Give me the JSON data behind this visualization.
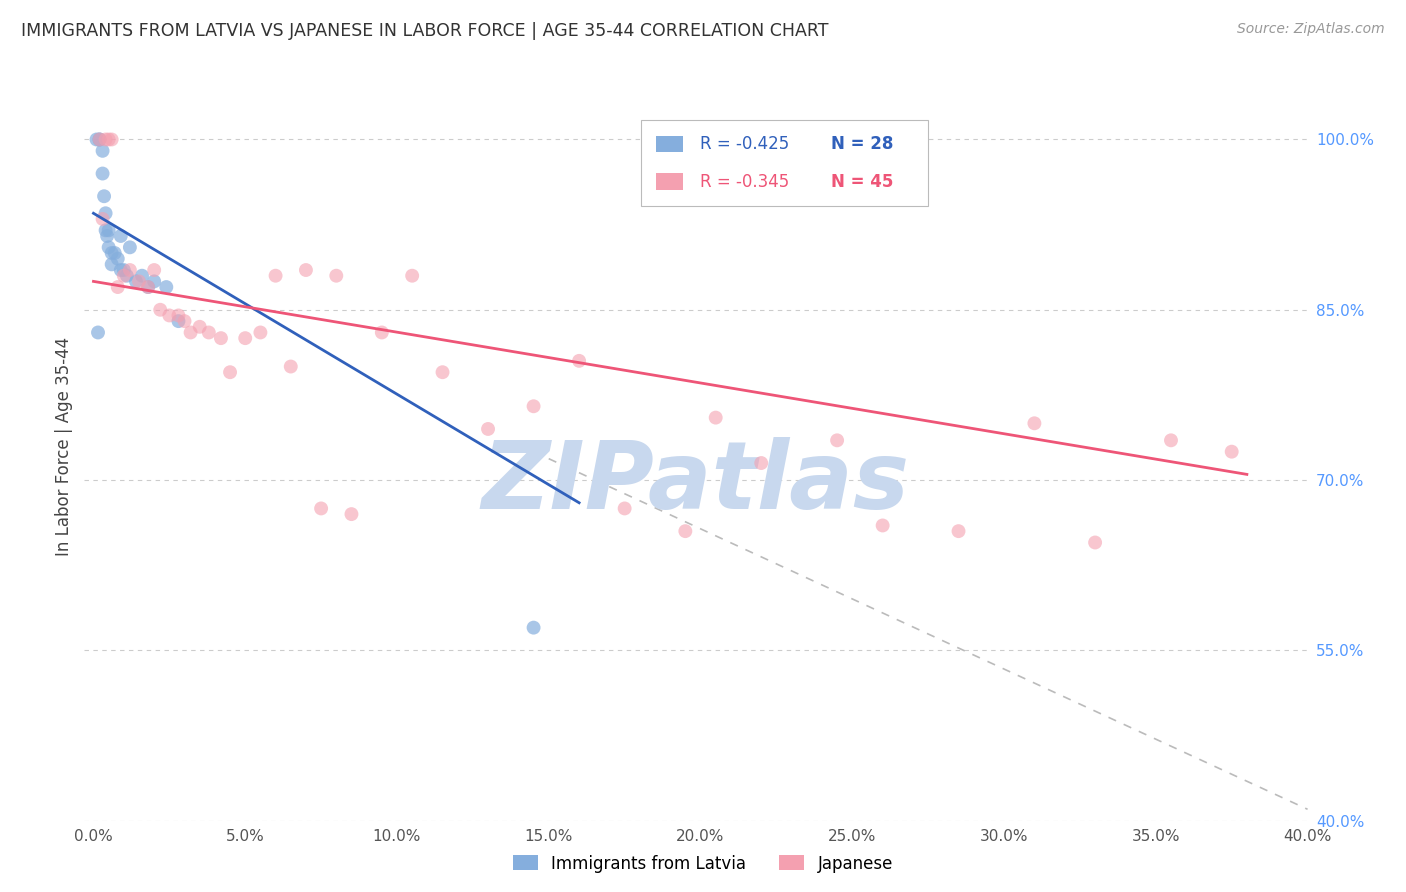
{
  "title": "IMMIGRANTS FROM LATVIA VS JAPANESE IN LABOR FORCE | AGE 35-44 CORRELATION CHART",
  "source": "Source: ZipAtlas.com",
  "ylabel": "In Labor Force | Age 35-44",
  "xlabel_vals": [
    0.0,
    5.0,
    10.0,
    15.0,
    20.0,
    25.0,
    30.0,
    35.0,
    40.0
  ],
  "ylabel_vals": [
    40.0,
    55.0,
    70.0,
    85.0,
    100.0
  ],
  "xlim": [
    -0.3,
    40.0
  ],
  "ylim": [
    40.0,
    106.0
  ],
  "blue_scatter_x": [
    0.1,
    0.2,
    0.2,
    0.3,
    0.3,
    0.35,
    0.4,
    0.4,
    0.45,
    0.5,
    0.5,
    0.6,
    0.6,
    0.7,
    0.8,
    0.9,
    0.9,
    1.0,
    1.1,
    1.2,
    1.4,
    1.6,
    1.8,
    2.0,
    2.4,
    2.8,
    14.5,
    0.15
  ],
  "blue_scatter_y": [
    100.0,
    100.0,
    100.0,
    99.0,
    97.0,
    95.0,
    93.5,
    92.0,
    91.5,
    92.0,
    90.5,
    90.0,
    89.0,
    90.0,
    89.5,
    88.5,
    91.5,
    88.5,
    88.0,
    90.5,
    87.5,
    88.0,
    87.0,
    87.5,
    87.0,
    84.0,
    57.0,
    83.0
  ],
  "pink_scatter_x": [
    0.2,
    0.4,
    0.5,
    0.6,
    0.8,
    1.0,
    1.2,
    1.5,
    1.8,
    2.0,
    2.2,
    2.5,
    2.8,
    3.0,
    3.2,
    3.5,
    3.8,
    4.2,
    4.5,
    5.0,
    5.5,
    6.0,
    6.5,
    7.0,
    7.5,
    8.0,
    8.5,
    9.5,
    10.5,
    11.5,
    13.0,
    14.5,
    16.0,
    17.5,
    19.5,
    20.5,
    22.0,
    24.5,
    26.0,
    28.5,
    31.0,
    33.0,
    35.5,
    37.5,
    0.3
  ],
  "pink_scatter_y": [
    100.0,
    100.0,
    100.0,
    100.0,
    87.0,
    88.0,
    88.5,
    87.5,
    87.0,
    88.5,
    85.0,
    84.5,
    84.5,
    84.0,
    83.0,
    83.5,
    83.0,
    82.5,
    79.5,
    82.5,
    83.0,
    88.0,
    80.0,
    88.5,
    67.5,
    88.0,
    67.0,
    83.0,
    88.0,
    79.5,
    74.5,
    76.5,
    80.5,
    67.5,
    65.5,
    75.5,
    71.5,
    73.5,
    66.0,
    65.5,
    75.0,
    64.5,
    73.5,
    72.5,
    93.0
  ],
  "blue_line_x": [
    0.0,
    16.0
  ],
  "blue_line_y": [
    93.5,
    68.0
  ],
  "pink_line_x": [
    0.0,
    38.0
  ],
  "pink_line_y": [
    87.5,
    70.5
  ],
  "dashed_line_x": [
    14.5,
    40.0
  ],
  "dashed_line_y": [
    72.5,
    41.0
  ],
  "legend_blue_r": "R = -0.425",
  "legend_blue_n": "N = 28",
  "legend_pink_r": "R = -0.345",
  "legend_pink_n": "N = 45",
  "blue_color": "#85AEDD",
  "pink_color": "#F4A0B0",
  "blue_line_color": "#3060BB",
  "pink_line_color": "#EE5577",
  "dashed_line_color": "#BBBBBB",
  "right_axis_color": "#5599FF",
  "title_color": "#333333",
  "watermark_color": "#C8D8EE",
  "watermark_text": "ZIPatlas",
  "source_color": "#999999",
  "grid_color": "#CCCCCC"
}
